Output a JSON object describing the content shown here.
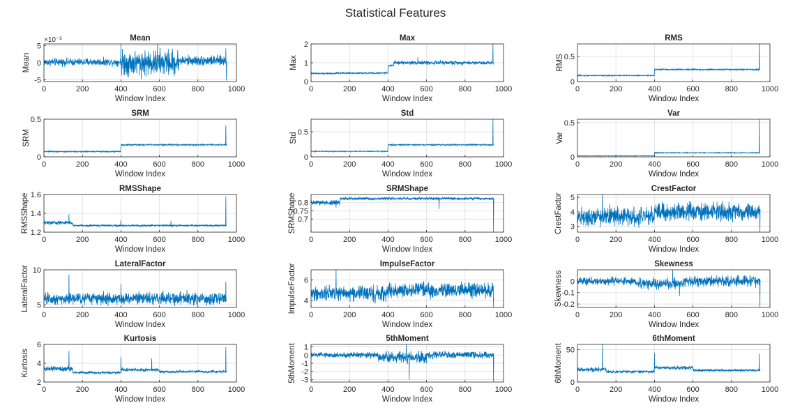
{
  "figure": {
    "title": "Statistical Features"
  },
  "chart_data": [
    {
      "type": "line",
      "title": "Mean",
      "xlabel": "Window Index",
      "ylabel": "Mean",
      "xlim": [
        0,
        1000
      ],
      "ylim": [
        -5.5,
        5.5
      ],
      "yticks": [
        -5,
        0,
        5
      ],
      "y_multiplier": "×10⁻³",
      "grid": true,
      "line_color": "#0072BD",
      "n_points": 950,
      "segments": [
        {
          "x": [
            0,
            400
          ],
          "y_mean": 0.2,
          "y_amp": 1.6
        },
        {
          "x": [
            400,
            700
          ],
          "y_mean": 0.0,
          "y_amp": 5.5
        },
        {
          "x": [
            700,
            950
          ],
          "y_mean": 0.6,
          "y_amp": 2.2
        }
      ],
      "spikes": [
        {
          "x": 400,
          "y": 5.5
        },
        {
          "x": 590,
          "y": 5.5
        },
        {
          "x": 945,
          "y": 4.2
        },
        {
          "x": 948,
          "y": -5.2
        }
      ]
    },
    {
      "type": "line",
      "title": "Max",
      "xlabel": "Window Index",
      "ylabel": "Max",
      "xlim": [
        0,
        1000
      ],
      "ylim": [
        0,
        2
      ],
      "yticks": [
        0,
        1,
        2
      ],
      "grid": true,
      "line_color": "#0072BD",
      "n_points": 950,
      "segments": [
        {
          "x": [
            0,
            130
          ],
          "y_mean": 0.43,
          "y_amp": 0.06
        },
        {
          "x": [
            130,
            400
          ],
          "y_mean": 0.45,
          "y_amp": 0.06
        },
        {
          "x": [
            400,
            430
          ],
          "y_mean": 0.85,
          "y_amp": 0.08
        },
        {
          "x": [
            430,
            940
          ],
          "y_mean": 1.0,
          "y_amp": 0.15
        }
      ],
      "spikes": [
        {
          "x": 555,
          "y": 1.3
        },
        {
          "x": 945,
          "y": 2.0
        }
      ]
    },
    {
      "type": "line",
      "title": "RMS",
      "xlabel": "Window Index",
      "ylabel": "RMS",
      "xlim": [
        0,
        1000
      ],
      "ylim": [
        0,
        0.75
      ],
      "yticks": [
        0,
        0.5
      ],
      "grid": true,
      "line_color": "#0072BD",
      "n_points": 950,
      "segments": [
        {
          "x": [
            0,
            400
          ],
          "y_mean": 0.12,
          "y_amp": 0.015
        },
        {
          "x": [
            400,
            940
          ],
          "y_mean": 0.24,
          "y_amp": 0.02
        }
      ],
      "spikes": [
        {
          "x": 945,
          "y": 0.75
        }
      ]
    },
    {
      "type": "line",
      "title": "SRM",
      "xlabel": "Window Index",
      "ylabel": "SRM",
      "xlim": [
        0,
        1000
      ],
      "ylim": [
        0,
        0.5
      ],
      "yticks": [
        0,
        0.5
      ],
      "grid": true,
      "line_color": "#0072BD",
      "n_points": 950,
      "segments": [
        {
          "x": [
            0,
            400
          ],
          "y_mean": 0.07,
          "y_amp": 0.012
        },
        {
          "x": [
            400,
            940
          ],
          "y_mean": 0.16,
          "y_amp": 0.015
        }
      ],
      "spikes": [
        {
          "x": 945,
          "y": 0.42
        }
      ]
    },
    {
      "type": "line",
      "title": "Std",
      "xlabel": "Window Index",
      "ylabel": "Std",
      "xlim": [
        0,
        1000
      ],
      "ylim": [
        0,
        0.75
      ],
      "yticks": [
        0,
        0.5
      ],
      "grid": true,
      "line_color": "#0072BD",
      "n_points": 950,
      "segments": [
        {
          "x": [
            0,
            400
          ],
          "y_mean": 0.11,
          "y_amp": 0.015
        },
        {
          "x": [
            400,
            940
          ],
          "y_mean": 0.24,
          "y_amp": 0.02
        }
      ],
      "spikes": [
        {
          "x": 945,
          "y": 0.75
        }
      ]
    },
    {
      "type": "line",
      "title": "Var",
      "xlabel": "Window Index",
      "ylabel": "Var",
      "xlim": [
        0,
        1000
      ],
      "ylim": [
        0,
        0.55
      ],
      "yticks": [
        0,
        0.5
      ],
      "grid": true,
      "line_color": "#0072BD",
      "n_points": 950,
      "segments": [
        {
          "x": [
            0,
            400
          ],
          "y_mean": 0.015,
          "y_amp": 0.006
        },
        {
          "x": [
            400,
            940
          ],
          "y_mean": 0.06,
          "y_amp": 0.01
        }
      ],
      "spikes": [
        {
          "x": 945,
          "y": 0.55
        }
      ]
    },
    {
      "type": "line",
      "title": "RMSShape",
      "xlabel": "Window Index",
      "ylabel": "RMSShape",
      "xlim": [
        0,
        1000
      ],
      "ylim": [
        1.2,
        1.6
      ],
      "yticks": [
        1.2,
        1.4,
        1.6
      ],
      "grid": true,
      "line_color": "#0072BD",
      "n_points": 950,
      "segments": [
        {
          "x": [
            0,
            150
          ],
          "y_mean": 1.3,
          "y_amp": 0.03
        },
        {
          "x": [
            150,
            940
          ],
          "y_mean": 1.27,
          "y_amp": 0.015
        }
      ],
      "spikes": [
        {
          "x": 130,
          "y": 1.39
        },
        {
          "x": 400,
          "y": 1.33
        },
        {
          "x": 660,
          "y": 1.32
        },
        {
          "x": 945,
          "y": 1.58
        }
      ]
    },
    {
      "type": "line",
      "title": "SRMShape",
      "xlabel": "Window Index",
      "ylabel": "SRMShape",
      "xlim": [
        0,
        1000
      ],
      "ylim": [
        0.62,
        0.85
      ],
      "yticks": [
        0.7,
        0.75,
        0.8
      ],
      "grid": true,
      "line_color": "#0072BD",
      "n_points": 950,
      "segments": [
        {
          "x": [
            0,
            150
          ],
          "y_mean": 0.8,
          "y_amp": 0.025
        },
        {
          "x": [
            150,
            940
          ],
          "y_mean": 0.825,
          "y_amp": 0.012
        }
      ],
      "spikes": [
        {
          "x": 130,
          "y": 0.77
        },
        {
          "x": 665,
          "y": 0.76
        },
        {
          "x": 948,
          "y": 0.62
        }
      ]
    },
    {
      "type": "line",
      "title": "CrestFactor",
      "xlabel": "Window Index",
      "ylabel": "CrestFactor",
      "xlim": [
        0,
        1000
      ],
      "ylim": [
        2.6,
        5.2
      ],
      "yticks": [
        3,
        4,
        5
      ],
      "grid": true,
      "line_color": "#0072BD",
      "n_points": 950,
      "segments": [
        {
          "x": [
            0,
            400
          ],
          "y_mean": 3.7,
          "y_amp": 0.9
        },
        {
          "x": [
            400,
            940
          ],
          "y_mean": 4.0,
          "y_amp": 0.9
        }
      ],
      "spikes": [
        {
          "x": 130,
          "y": 5.2
        },
        {
          "x": 948,
          "y": 2.6
        }
      ]
    },
    {
      "type": "line",
      "title": "LateralFactor",
      "xlabel": "Window Index",
      "ylabel": "LateralFactor",
      "xlim": [
        0,
        1000
      ],
      "ylim": [
        4.6,
        10
      ],
      "yticks": [
        5,
        10
      ],
      "grid": true,
      "line_color": "#0072BD",
      "n_points": 950,
      "segments": [
        {
          "x": [
            0,
            940
          ],
          "y_mean": 5.9,
          "y_amp": 1.3
        }
      ],
      "spikes": [
        {
          "x": 130,
          "y": 9.3
        },
        {
          "x": 400,
          "y": 8.0
        },
        {
          "x": 945,
          "y": 8.3
        }
      ]
    },
    {
      "type": "line",
      "title": "ImpulseFactor",
      "xlabel": "Window Index",
      "ylabel": "ImpulseFactor",
      "xlim": [
        0,
        1000
      ],
      "ylim": [
        3.3,
        7
      ],
      "yticks": [
        4,
        6
      ],
      "grid": true,
      "line_color": "#0072BD",
      "n_points": 950,
      "segments": [
        {
          "x": [
            0,
            400
          ],
          "y_mean": 4.7,
          "y_amp": 1.1
        },
        {
          "x": [
            400,
            940
          ],
          "y_mean": 5.0,
          "y_amp": 1.1
        }
      ],
      "spikes": [
        {
          "x": 130,
          "y": 7.0
        },
        {
          "x": 948,
          "y": 3.3
        }
      ]
    },
    {
      "type": "line",
      "title": "Skewness",
      "xlabel": "Window Index",
      "ylabel": "Skewness",
      "xlim": [
        0,
        1000
      ],
      "ylim": [
        -0.23,
        0.1
      ],
      "yticks": [
        -0.2,
        -0.1,
        0
      ],
      "grid": true,
      "line_color": "#0072BD",
      "n_points": 950,
      "segments": [
        {
          "x": [
            0,
            300
          ],
          "y_mean": 0.0,
          "y_amp": 0.05
        },
        {
          "x": [
            300,
            550
          ],
          "y_mean": -0.02,
          "y_amp": 0.07
        },
        {
          "x": [
            550,
            940
          ],
          "y_mean": 0.0,
          "y_amp": 0.07
        }
      ],
      "spikes": [
        {
          "x": 495,
          "y": 0.1
        },
        {
          "x": 530,
          "y": -0.13
        },
        {
          "x": 948,
          "y": -0.23
        }
      ]
    },
    {
      "type": "line",
      "title": "Kurtosis",
      "xlabel": "Window Index",
      "ylabel": "Kurtosis",
      "xlim": [
        0,
        1000
      ],
      "ylim": [
        2,
        6
      ],
      "yticks": [
        2,
        4,
        6
      ],
      "grid": true,
      "line_color": "#0072BD",
      "n_points": 950,
      "segments": [
        {
          "x": [
            0,
            150
          ],
          "y_mean": 3.4,
          "y_amp": 0.4
        },
        {
          "x": [
            150,
            400
          ],
          "y_mean": 3.0,
          "y_amp": 0.2
        },
        {
          "x": [
            400,
            600
          ],
          "y_mean": 3.3,
          "y_amp": 0.25
        },
        {
          "x": [
            600,
            940
          ],
          "y_mean": 3.1,
          "y_amp": 0.2
        }
      ],
      "spikes": [
        {
          "x": 130,
          "y": 5.3
        },
        {
          "x": 400,
          "y": 4.7
        },
        {
          "x": 560,
          "y": 4.5
        },
        {
          "x": 945,
          "y": 5.7
        }
      ]
    },
    {
      "type": "line",
      "title": "5thMoment",
      "xlabel": "Window Index",
      "ylabel": "5thMoment",
      "xlim": [
        0,
        1000
      ],
      "ylim": [
        -3.3,
        1.3
      ],
      "yticks": [
        -3,
        -2,
        -1,
        0,
        1
      ],
      "grid": true,
      "line_color": "#0072BD",
      "n_points": 950,
      "segments": [
        {
          "x": [
            0,
            350
          ],
          "y_mean": 0.0,
          "y_amp": 0.5
        },
        {
          "x": [
            350,
            600
          ],
          "y_mean": -0.3,
          "y_amp": 1.0
        },
        {
          "x": [
            600,
            940
          ],
          "y_mean": 0.0,
          "y_amp": 0.6
        }
      ],
      "spikes": [
        {
          "x": 495,
          "y": 1.3
        },
        {
          "x": 510,
          "y": -3.0
        },
        {
          "x": 948,
          "y": -3.3
        }
      ]
    },
    {
      "type": "line",
      "title": "6thMoment",
      "xlabel": "Window Index",
      "ylabel": "6thMoment",
      "xlim": [
        0,
        1000
      ],
      "ylim": [
        0,
        58
      ],
      "yticks": [
        0,
        50
      ],
      "grid": true,
      "line_color": "#0072BD",
      "n_points": 950,
      "segments": [
        {
          "x": [
            0,
            150
          ],
          "y_mean": 19,
          "y_amp": 5
        },
        {
          "x": [
            150,
            400
          ],
          "y_mean": 16,
          "y_amp": 3
        },
        {
          "x": [
            400,
            600
          ],
          "y_mean": 22,
          "y_amp": 4
        },
        {
          "x": [
            600,
            940
          ],
          "y_mean": 18,
          "y_amp": 3
        }
      ],
      "spikes": [
        {
          "x": 130,
          "y": 58
        },
        {
          "x": 400,
          "y": 45
        },
        {
          "x": 945,
          "y": 44
        }
      ]
    }
  ]
}
